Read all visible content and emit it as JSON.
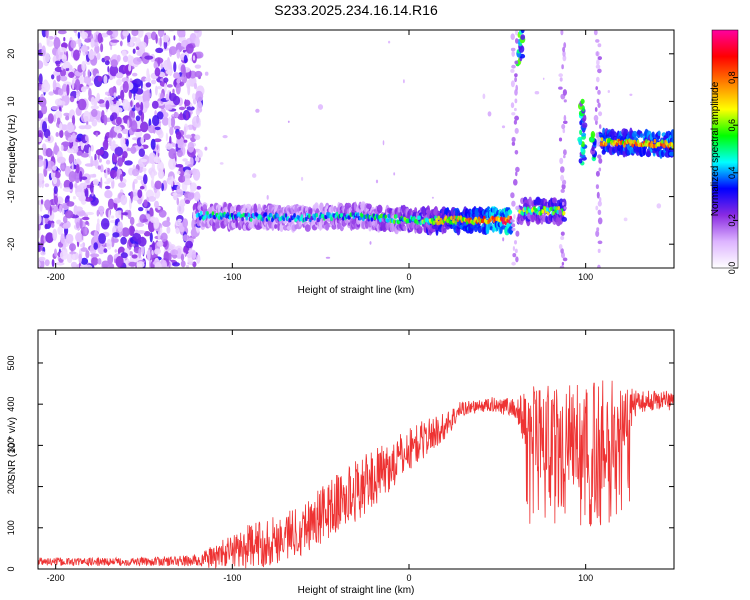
{
  "title": "S233.2025.234.16.14.R16",
  "chart_data": [
    {
      "type": "heatmap",
      "xlabel": "Height of straight line (km)",
      "ylabel": "Frequency (Hz)",
      "xlim": [
        -210,
        150
      ],
      "ylim": [
        -25,
        25
      ],
      "xticks": [
        -200,
        -100,
        0,
        100
      ],
      "yticks": [
        -20,
        -10,
        0,
        10,
        20
      ],
      "colorbar": {
        "label": "Normalized spectral amplitude",
        "range": [
          0,
          1
        ],
        "ticks": [
          0.0,
          0.2,
          0.4,
          0.6,
          0.8
        ],
        "tick_labels": [
          "0.0",
          "0.2",
          "0.4",
          "0.6",
          "0.8"
        ],
        "stops": [
          "#ffffff",
          "#ddb4ff",
          "#8a2be2",
          "#0000ff",
          "#00ffff",
          "#00ff00",
          "#ffff00",
          "#ff8000",
          "#ff0000",
          "#ff00a0"
        ]
      },
      "ridges": [
        {
          "x": [
            -120,
            -60,
            -30,
            0,
            30,
            58
          ],
          "y": [
            -14,
            -14.5,
            -14,
            -15,
            -15,
            -15
          ],
          "strength": [
            0.35,
            0.3,
            0.35,
            0.45,
            0.7,
            0.95
          ]
        },
        {
          "x": [
            62,
            88
          ],
          "y": [
            -13,
            -13
          ],
          "strength": [
            0.5,
            0.55
          ]
        },
        {
          "x": [
            108,
            150
          ],
          "y": [
            1.5,
            1
          ],
          "strength": [
            0.7,
            0.8
          ]
        }
      ],
      "vertical_streaks": [
        {
          "x": 63,
          "y_range": [
            18,
            25
          ],
          "strength": 0.6
        },
        {
          "x": 98,
          "y_range": [
            -3,
            10
          ],
          "strength": 0.5
        },
        {
          "x": 104,
          "y_range": [
            -2,
            3
          ],
          "strength": 0.5
        }
      ]
    },
    {
      "type": "line",
      "xlabel": "Height of straight line (km)",
      "ylabel": "SNR (10 * v/v)",
      "xlim": [
        -210,
        150
      ],
      "ylim": [
        0,
        580
      ],
      "xticks": [
        -200,
        -100,
        0,
        100
      ],
      "yticks": [
        0,
        100,
        200,
        300,
        400,
        500
      ],
      "color": "#ee3333",
      "series": [
        {
          "x": [
            -210,
            -180,
            -150,
            -120,
            -110,
            -100,
            -90,
            -80,
            -70,
            -60,
            -50,
            -40,
            -30,
            -20,
            -10,
            0,
            10,
            20,
            30,
            40,
            50,
            60,
            70,
            80,
            90,
            100,
            110,
            120,
            130,
            140,
            150
          ],
          "values": [
            18,
            17,
            18,
            20,
            30,
            45,
            55,
            65,
            80,
            100,
            130,
            160,
            190,
            220,
            250,
            290,
            320,
            345,
            390,
            395,
            400,
            390,
            330,
            340,
            320,
            330,
            330,
            360,
            405,
            410,
            410
          ],
          "spread": [
            10,
            10,
            10,
            15,
            30,
            40,
            55,
            60,
            60,
            65,
            70,
            75,
            75,
            70,
            60,
            55,
            45,
            35,
            20,
            15,
            20,
            25,
            120,
            110,
            130,
            130,
            150,
            90,
            25,
            25,
            25
          ]
        }
      ]
    }
  ]
}
